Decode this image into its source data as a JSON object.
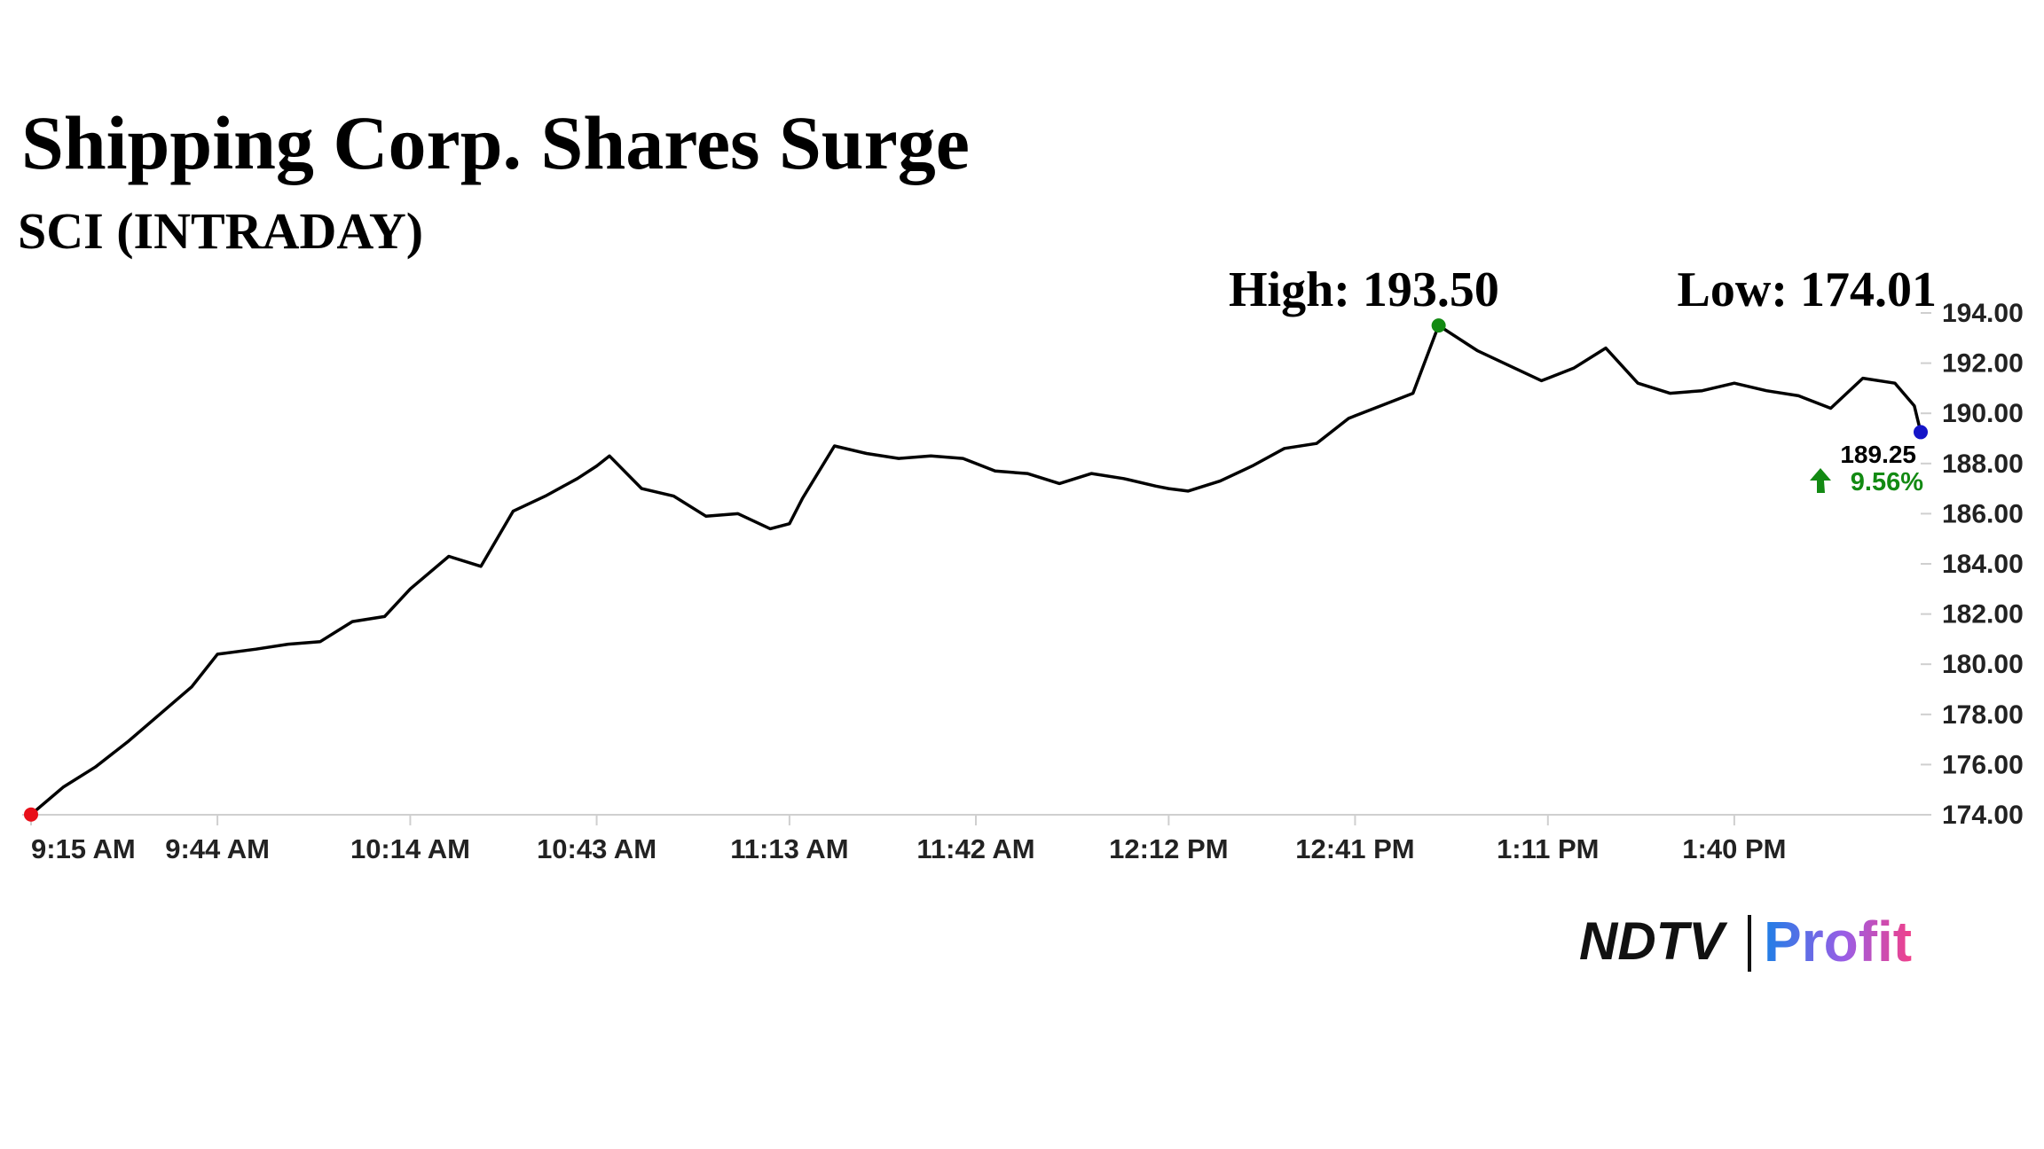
{
  "chart_data": {
    "type": "line",
    "title": "Shipping Corp. Shares Surge",
    "subtitle": "SCI (INTRADAY)",
    "annotations": [
      "High: 193.50",
      "Low: 174.01"
    ],
    "last_label": "189.25",
    "change_label": "9.56%",
    "brand": [
      "NDTV",
      "Profit"
    ],
    "x": [
      "9:15 AM",
      "9:20 AM",
      "9:25 AM",
      "9:30 AM",
      "9:35 AM",
      "9:40 AM",
      "9:44 AM",
      "9:50 AM",
      "9:55 AM",
      "10:00 AM",
      "10:05 AM",
      "10:10 AM",
      "10:14 AM",
      "10:20 AM",
      "10:25 AM",
      "10:30 AM",
      "10:35 AM",
      "10:40 AM",
      "10:43 AM",
      "10:45 AM",
      "10:50 AM",
      "10:55 AM",
      "11:00 AM",
      "11:05 AM",
      "11:10 AM",
      "11:13 AM",
      "11:15 AM",
      "11:20 AM",
      "11:25 AM",
      "11:30 AM",
      "11:35 AM",
      "11:40 AM",
      "11:42 AM",
      "11:45 AM",
      "11:50 AM",
      "11:55 AM",
      "12:00 PM",
      "12:05 PM",
      "12:10 PM",
      "12:12 PM",
      "12:15 PM",
      "12:20 PM",
      "12:25 PM",
      "12:30 PM",
      "12:35 PM",
      "12:40 PM",
      "12:41 PM",
      "12:45 PM",
      "12:50 PM",
      "12:54 PM",
      "1:00 PM",
      "1:05 PM",
      "1:10 PM",
      "1:11 PM",
      "1:15 PM",
      "1:20 PM",
      "1:25 PM",
      "1:30 PM",
      "1:35 PM",
      "1:40 PM",
      "1:45 PM",
      "1:50 PM",
      "1:55 PM",
      "2:00 PM",
      "2:05 PM",
      "2:08 PM",
      "2:09 PM"
    ],
    "series": [
      {
        "name": "SCI",
        "color": "#000000",
        "values": [
          174.01,
          175.1,
          175.9,
          176.9,
          178.0,
          179.1,
          180.4,
          180.6,
          180.8,
          180.9,
          181.7,
          181.9,
          183.0,
          184.3,
          183.9,
          186.1,
          186.7,
          187.4,
          187.9,
          188.3,
          187.0,
          186.7,
          185.9,
          186.0,
          185.4,
          185.6,
          186.6,
          188.7,
          188.4,
          188.2,
          188.3,
          188.2,
          188.0,
          187.7,
          187.6,
          187.2,
          187.6,
          187.4,
          187.1,
          187.0,
          186.9,
          187.3,
          187.9,
          188.6,
          188.8,
          189.8,
          189.9,
          190.3,
          190.8,
          193.5,
          192.5,
          191.9,
          191.3,
          191.4,
          191.8,
          192.6,
          191.2,
          190.8,
          190.9,
          191.2,
          190.9,
          190.7,
          190.2,
          191.4,
          191.2,
          190.3,
          189.25
        ]
      }
    ],
    "xlim": [
      "9:15 AM",
      "2:09 PM"
    ],
    "xticks": [
      "9:15 AM",
      "9:44 AM",
      "10:14 AM",
      "10:43 AM",
      "11:13 AM",
      "11:42 AM",
      "12:12 PM",
      "12:41 PM",
      "1:11 PM",
      "1:40 PM"
    ],
    "ylim": [
      174,
      194
    ],
    "yticks": [
      {
        "value": 174,
        "label": "174.00"
      },
      {
        "value": 176,
        "label": "176.00"
      },
      {
        "value": 178,
        "label": "178.00"
      },
      {
        "value": 180,
        "label": "180.00"
      },
      {
        "value": 182,
        "label": "182.00"
      },
      {
        "value": 184,
        "label": "184.00"
      },
      {
        "value": 186,
        "label": "186.00"
      },
      {
        "value": 188,
        "label": "188.00"
      },
      {
        "value": 190,
        "label": "190.00"
      },
      {
        "value": 192,
        "label": "192.00"
      },
      {
        "value": 194,
        "label": "194.00"
      }
    ],
    "marker_colors": {
      "low": "#e8101a",
      "high": "#138a13",
      "last": "#1515c8"
    },
    "change_color": "#138a13"
  }
}
